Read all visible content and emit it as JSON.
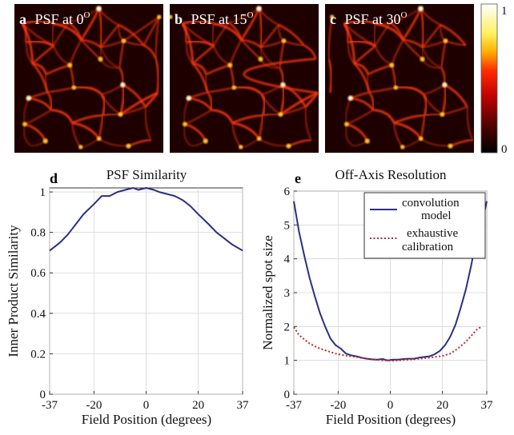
{
  "panels": [
    {
      "letter": "a",
      "label": "PSF at 0",
      "sup": "O"
    },
    {
      "letter": "b",
      "label": "PSF at 15",
      "sup": "O"
    },
    {
      "letter": "c",
      "label": "PSF at 30",
      "sup": "O"
    }
  ],
  "colorbar": {
    "max_label": "1",
    "min_label": "0"
  },
  "colors": {
    "series_blue": "#2b2f86",
    "series_red": "#c0282d",
    "psf_background": "#1e0000",
    "psf_ridge": "#ff3a10"
  },
  "chart_data": [
    {
      "panel": "d",
      "type": "line",
      "title": "PSF Similarity",
      "xlabel": "Field Position (degrees)",
      "ylabel": "Inner Product Similarity",
      "xlim": [
        -37,
        37
      ],
      "ylim": [
        0,
        1.02
      ],
      "xticks": [
        "-37",
        "-20",
        "0",
        "20",
        "37"
      ],
      "yticks": [
        "0",
        "0.2",
        "0.4",
        "0.6",
        "0.8",
        "1"
      ],
      "grid": true,
      "series": [
        {
          "x": [
            -37,
            -33,
            -30,
            -27,
            -24,
            -20,
            -17,
            -14,
            -11,
            -8,
            -5,
            -3,
            0,
            3,
            5,
            8,
            11,
            14,
            17,
            20,
            24,
            27,
            30,
            33,
            37
          ],
          "y": [
            0.71,
            0.75,
            0.79,
            0.84,
            0.89,
            0.94,
            0.98,
            0.98,
            1.0,
            1.01,
            1.02,
            1.01,
            1.02,
            1.01,
            1.0,
            0.99,
            0.98,
            0.96,
            0.93,
            0.89,
            0.84,
            0.8,
            0.77,
            0.74,
            0.71
          ]
        }
      ]
    },
    {
      "panel": "e",
      "type": "line",
      "title": "Off-Axis Resolution",
      "xlabel": "Field Position (degrees)",
      "ylabel": "Normalized spot size",
      "xlim": [
        -37,
        37
      ],
      "ylim": [
        0,
        6
      ],
      "xticks": [
        "-37",
        "-20",
        "0",
        "20",
        "37"
      ],
      "yticks": [
        "0",
        "1",
        "2",
        "3",
        "4",
        "5",
        "6"
      ],
      "grid": true,
      "legend_position": "top-right",
      "series": [
        {
          "name": "convolution model",
          "name_lines": [
            "convolution",
            "model"
          ],
          "style": "solid",
          "x": [
            -37,
            -35,
            -33,
            -31,
            -29,
            -27,
            -25,
            -23,
            -21,
            -19,
            -17,
            -15,
            -13,
            -11,
            -9,
            -7,
            -5,
            -3,
            -1,
            1,
            3,
            5,
            7,
            9,
            11,
            13,
            15,
            17,
            19,
            21,
            23,
            25,
            27,
            29,
            31,
            33,
            35,
            37
          ],
          "y": [
            5.7,
            4.8,
            4.1,
            3.45,
            2.9,
            2.4,
            2.0,
            1.65,
            1.45,
            1.35,
            1.2,
            1.15,
            1.12,
            1.08,
            1.05,
            1.03,
            1.02,
            1.04,
            1.0,
            1.02,
            1.02,
            1.04,
            1.05,
            1.05,
            1.08,
            1.1,
            1.12,
            1.18,
            1.28,
            1.45,
            1.7,
            2.05,
            2.55,
            3.1,
            3.8,
            4.6,
            5.0,
            5.7
          ]
        },
        {
          "name": "exhaustive calibration",
          "name_lines": [
            "exhaustive",
            "calibration"
          ],
          "style": "dotted",
          "x": [
            -37,
            -35,
            -33,
            -31,
            -29,
            -27,
            -25,
            -23,
            -21,
            -19,
            -17,
            -15,
            -13,
            -11,
            -9,
            -7,
            -5,
            -3,
            -1,
            1,
            3,
            5,
            7,
            9,
            11,
            13,
            15,
            17,
            19,
            21,
            23,
            25,
            27,
            29,
            31,
            33,
            35
          ],
          "y": [
            1.98,
            1.75,
            1.62,
            1.5,
            1.42,
            1.35,
            1.3,
            1.25,
            1.2,
            1.17,
            1.14,
            1.12,
            1.1,
            1.07,
            1.05,
            1.03,
            1.02,
            1.0,
            1.0,
            0.99,
            1.0,
            1.01,
            1.02,
            1.03,
            1.05,
            1.06,
            1.08,
            1.1,
            1.12,
            1.15,
            1.2,
            1.3,
            1.42,
            1.55,
            1.72,
            1.9,
            2.0
          ]
        }
      ]
    }
  ]
}
